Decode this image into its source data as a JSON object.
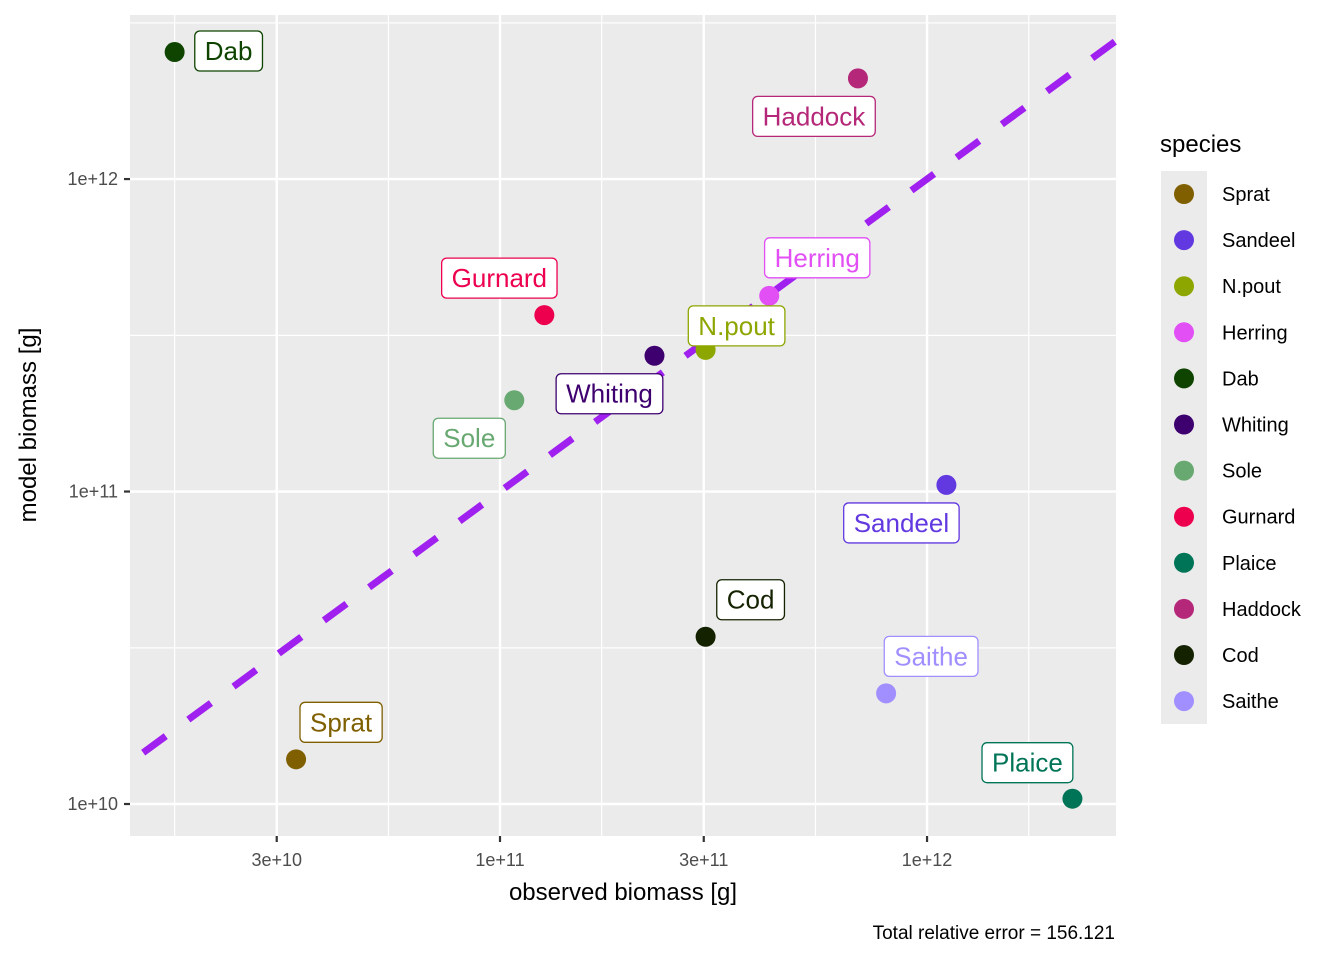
{
  "chart_data": {
    "type": "scatter",
    "title": "",
    "xlabel": "observed biomass [g]",
    "ylabel": "model biomass [g]",
    "caption": "Total relative error = 156.121",
    "x_scale": "log10",
    "y_scale": "log10",
    "xlim": [
      13600000000.0,
      2770000000000.0
    ],
    "ylim": [
      7900000000.0,
      3350000000000.0
    ],
    "x_ticks": [
      {
        "value": 30000000000.0,
        "label": "3e+10"
      },
      {
        "value": 100000000000.0,
        "label": "1e+11"
      },
      {
        "value": 300000000000.0,
        "label": "3e+11"
      },
      {
        "value": 1000000000000.0,
        "label": "1e+12"
      }
    ],
    "x_minor_ticks": [
      17300000000.0,
      54800000000.0,
      173000000000.0,
      548000000000.0,
      1730000000000.0
    ],
    "y_ticks": [
      {
        "value": 10000000000.0,
        "label": "1e+10"
      },
      {
        "value": 100000000000.0,
        "label": "1e+11"
      },
      {
        "value": 1000000000000.0,
        "label": "1e+12"
      }
    ],
    "y_minor_ticks": [
      31600000000.0,
      316000000000.0,
      3160000000000.0
    ],
    "grid": true,
    "reference_line": {
      "type": "identity",
      "style": "dashed",
      "color": "#A020F0",
      "from": 14600000000.0,
      "to": 2770000000000.0
    },
    "legend": {
      "title": "species",
      "position": "right"
    },
    "series": [
      {
        "name": "Sprat",
        "color": "#7F5F00",
        "x": 33300000000.0,
        "y": 13900000000.0
      },
      {
        "name": "Sandeel",
        "color": "#6238E0",
        "x": 1110000000000.0,
        "y": 105000000000.0
      },
      {
        "name": "N.pout",
        "color": "#8EA600",
        "x": 303000000000.0,
        "y": 284000000000.0
      },
      {
        "name": "Herring",
        "color": "#E14FF5",
        "x": 427000000000.0,
        "y": 423000000000.0
      },
      {
        "name": "Dab",
        "color": "#0E4400",
        "x": 17300000000.0,
        "y": 2550000000000.0
      },
      {
        "name": "Whiting",
        "color": "#3E006F",
        "x": 230000000000.0,
        "y": 272000000000.0
      },
      {
        "name": "Sole",
        "color": "#68A871",
        "x": 108000000000.0,
        "y": 196000000000.0
      },
      {
        "name": "Gurnard",
        "color": "#ED004E",
        "x": 127000000000.0,
        "y": 367000000000.0
      },
      {
        "name": "Plaice",
        "color": "#007456",
        "x": 2190000000000.0,
        "y": 10400000000.0
      },
      {
        "name": "Haddock",
        "color": "#B52778",
        "x": 689000000000.0,
        "y": 2100000000000.0
      },
      {
        "name": "Cod",
        "color": "#142200",
        "x": 303000000000.0,
        "y": 34300000000.0
      },
      {
        "name": "Saithe",
        "color": "#A18FFF",
        "x": 802000000000.0,
        "y": 22600000000.0
      }
    ]
  }
}
